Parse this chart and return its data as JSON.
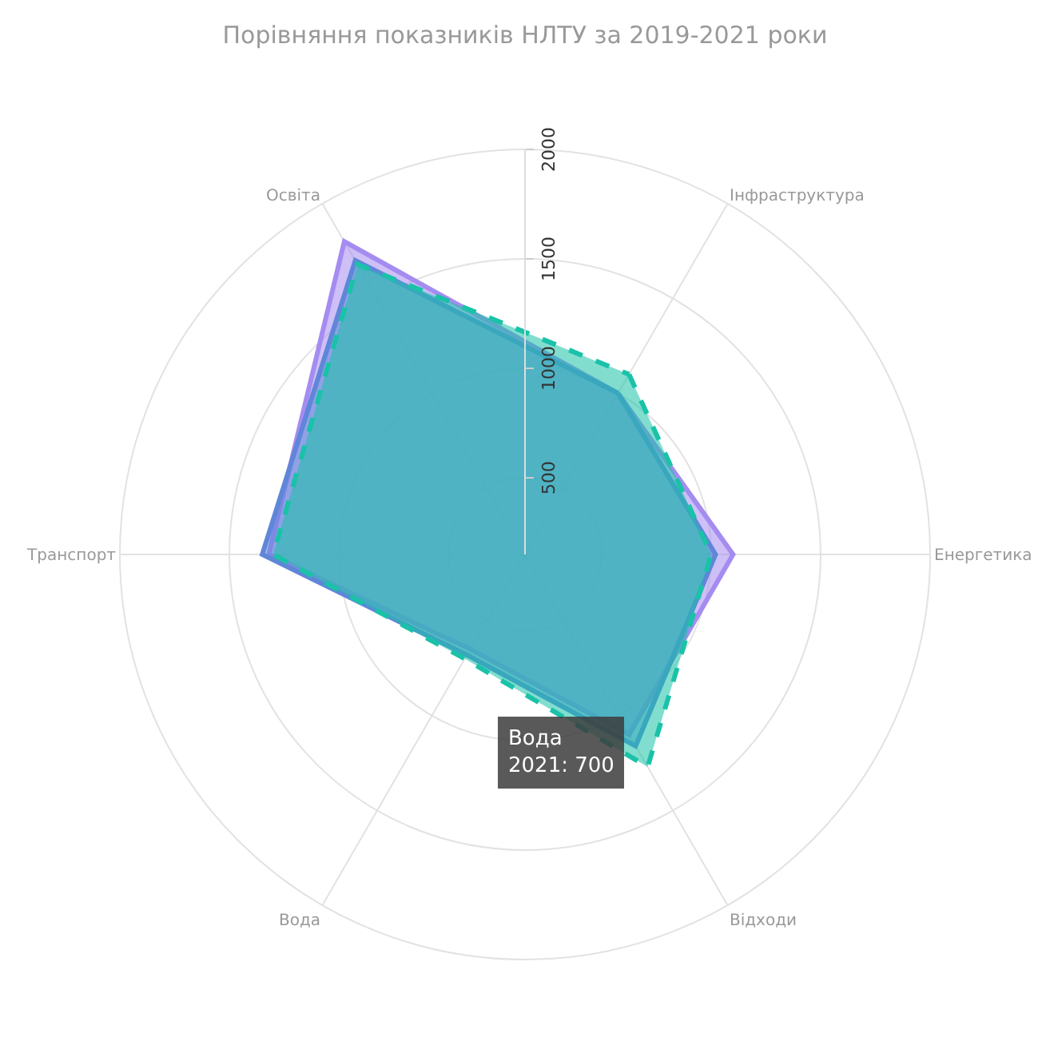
{
  "chart_data": {
    "type": "radar",
    "title": "Порівняння показників НЛТУ за 2019-2021 роки",
    "categories": [
      "Інфраструктура",
      "Енергетика",
      "Відходи",
      "Вода",
      "Транспорт",
      "Освіта"
    ],
    "series": [
      {
        "color": "#a58cf0",
        "values": [
          1000,
          1100,
          1100,
          650,
          1320,
          1800
        ]
      },
      {
        "color": "#5f86d8",
        "values": [
          1000,
          1020,
          1160,
          680,
          1350,
          1700
        ]
      },
      {
        "color": "#19c2a8",
        "values": [
          1100,
          1000,
          1270,
          700,
          1300,
          1680
        ],
        "line_style": "dashed"
      }
    ],
    "ylim": [
      150,
      2000
    ],
    "yticks": [
      500,
      1000,
      1500,
      2000
    ],
    "grid": true,
    "annotations": [
      "Вода\n2021: 700"
    ]
  }
}
